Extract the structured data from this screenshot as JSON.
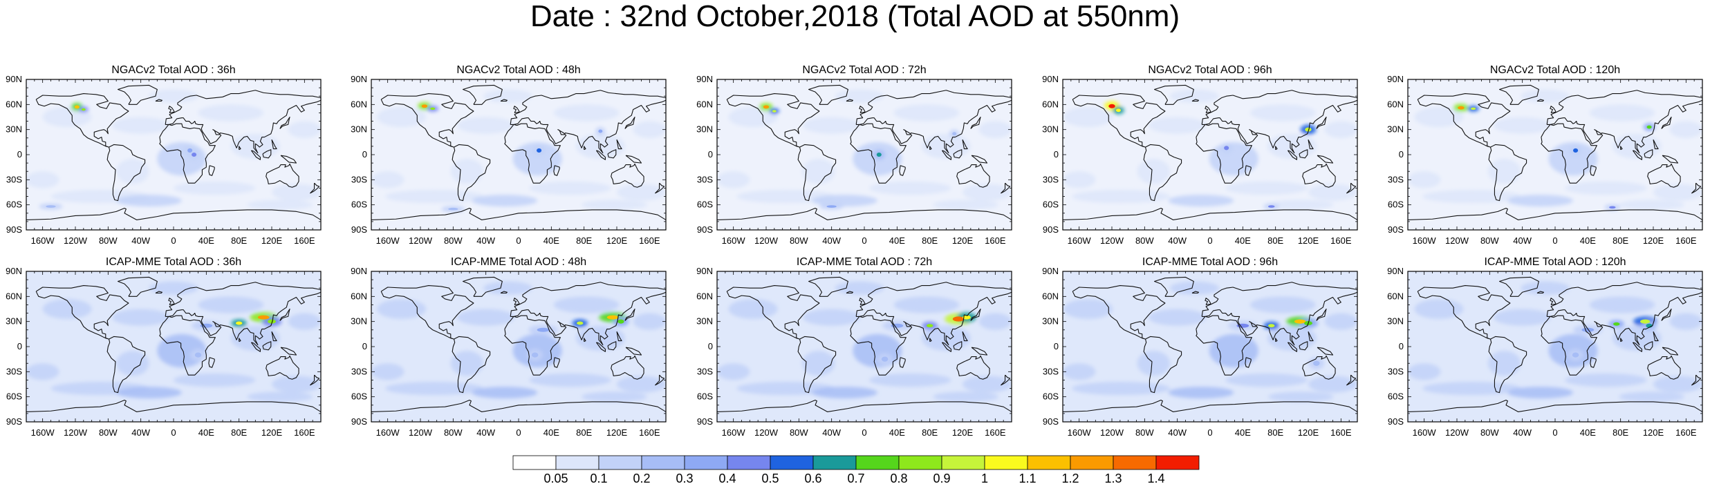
{
  "title": "Date : 32nd October,2018 (Total AOD at 550nm)",
  "rows": [
    {
      "name": "NGACv2",
      "panels": [
        {
          "title": "NGACv2 Total AOD : 36h"
        },
        {
          "title": "NGACv2 Total AOD : 48h"
        },
        {
          "title": "NGACv2 Total AOD : 72h"
        },
        {
          "title": "NGACv2 Total AOD : 96h"
        },
        {
          "title": "NGACv2 Total AOD : 120h"
        }
      ]
    },
    {
      "name": "ICAP-MME",
      "panels": [
        {
          "title": "ICAP-MME Total AOD : 36h"
        },
        {
          "title": "ICAP-MME Total AOD : 48h"
        },
        {
          "title": "ICAP-MME Total AOD : 72h"
        },
        {
          "title": "ICAP-MME Total AOD : 96h"
        },
        {
          "title": "ICAP-MME Total AOD : 120h"
        }
      ]
    }
  ],
  "lat_ticks": [
    "90N",
    "60N",
    "30N",
    "0",
    "30S",
    "60S",
    "90S"
  ],
  "lon_ticks": [
    "160W",
    "120W",
    "80W",
    "40W",
    "0",
    "40E",
    "80E",
    "120E",
    "160E"
  ],
  "lon_tick_values": [
    -160,
    -120,
    -80,
    -40,
    0,
    40,
    80,
    120,
    160
  ],
  "lat_tick_values": [
    90,
    60,
    30,
    0,
    -30,
    -60,
    -90
  ],
  "colorbar": {
    "labels": [
      "0.05",
      "0.1",
      "0.2",
      "0.3",
      "0.4",
      "0.5",
      "0.6",
      "0.7",
      "0.8",
      "0.9",
      "1",
      "1.1",
      "1.2",
      "1.3",
      "1.4"
    ],
    "colors": [
      "#ffffff",
      "#dde6fa",
      "#c2d2f8",
      "#a7bdf6",
      "#8ea9f4",
      "#7686ee",
      "#1f63e0",
      "#1a9a9a",
      "#55d61c",
      "#8ee81c",
      "#c6f43a",
      "#fafa1e",
      "#fbc000",
      "#fa9a00",
      "#f76a00",
      "#f21d00"
    ]
  },
  "projection": "cylindrical equidistant, -180 to 180 longitude, -90 to 90 latitude"
}
